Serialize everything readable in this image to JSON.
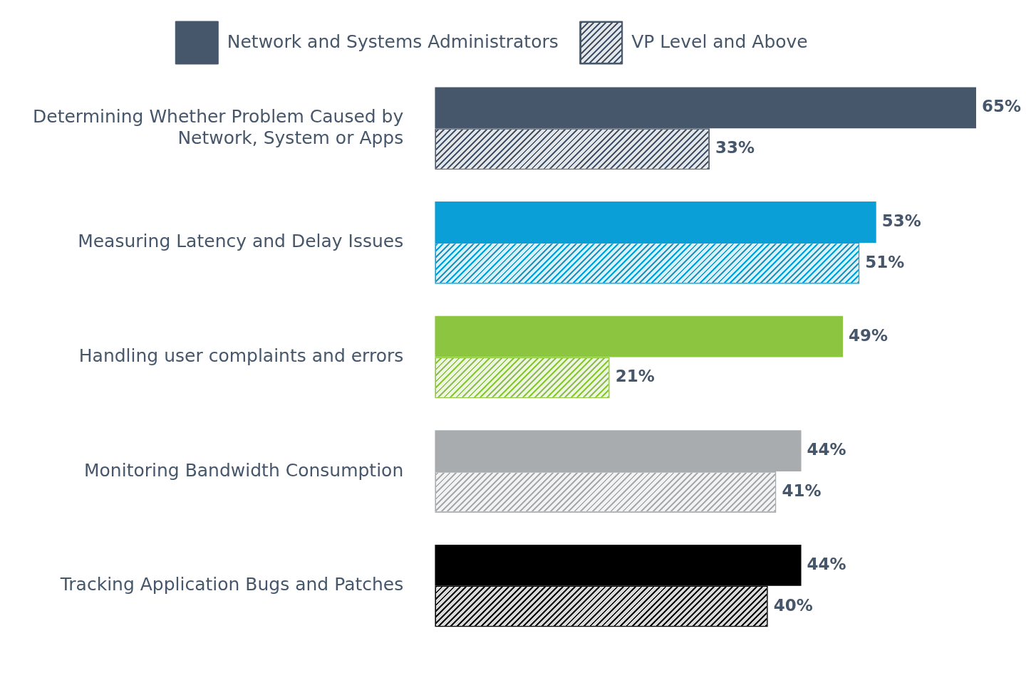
{
  "chart_data": {
    "type": "bar",
    "orientation": "horizontal",
    "categories": [
      "Determining Whether Problem Caused by Network, System or Apps",
      "Measuring Latency and Delay Issues",
      "Handling user complaints and errors",
      "Monitoring Bandwidth Consumption",
      "Tracking Application Bugs and Patches"
    ],
    "series": [
      {
        "name": "Network and Systems Administrators",
        "color": "#46566b",
        "colors": [
          "#46566b",
          "#0b9fd8",
          "#8cc540",
          "#a9acae",
          "#000000"
        ],
        "values": [
          65,
          53,
          49,
          44,
          44
        ],
        "value_labels": [
          "65%",
          "53%",
          "49%",
          "44%",
          "44%"
        ]
      },
      {
        "name": "VP Level and Above",
        "color": "#46566b",
        "colors": [
          "#46566b",
          "#0b9fd8",
          "#8cc540",
          "#a9acae",
          "#000000"
        ],
        "values": [
          33,
          51,
          21,
          41,
          40
        ],
        "value_labels": [
          "33%",
          "51%",
          "21%",
          "41%",
          "40%"
        ]
      }
    ],
    "legend": "top",
    "tick_labels": "y",
    "grid": false
  }
}
